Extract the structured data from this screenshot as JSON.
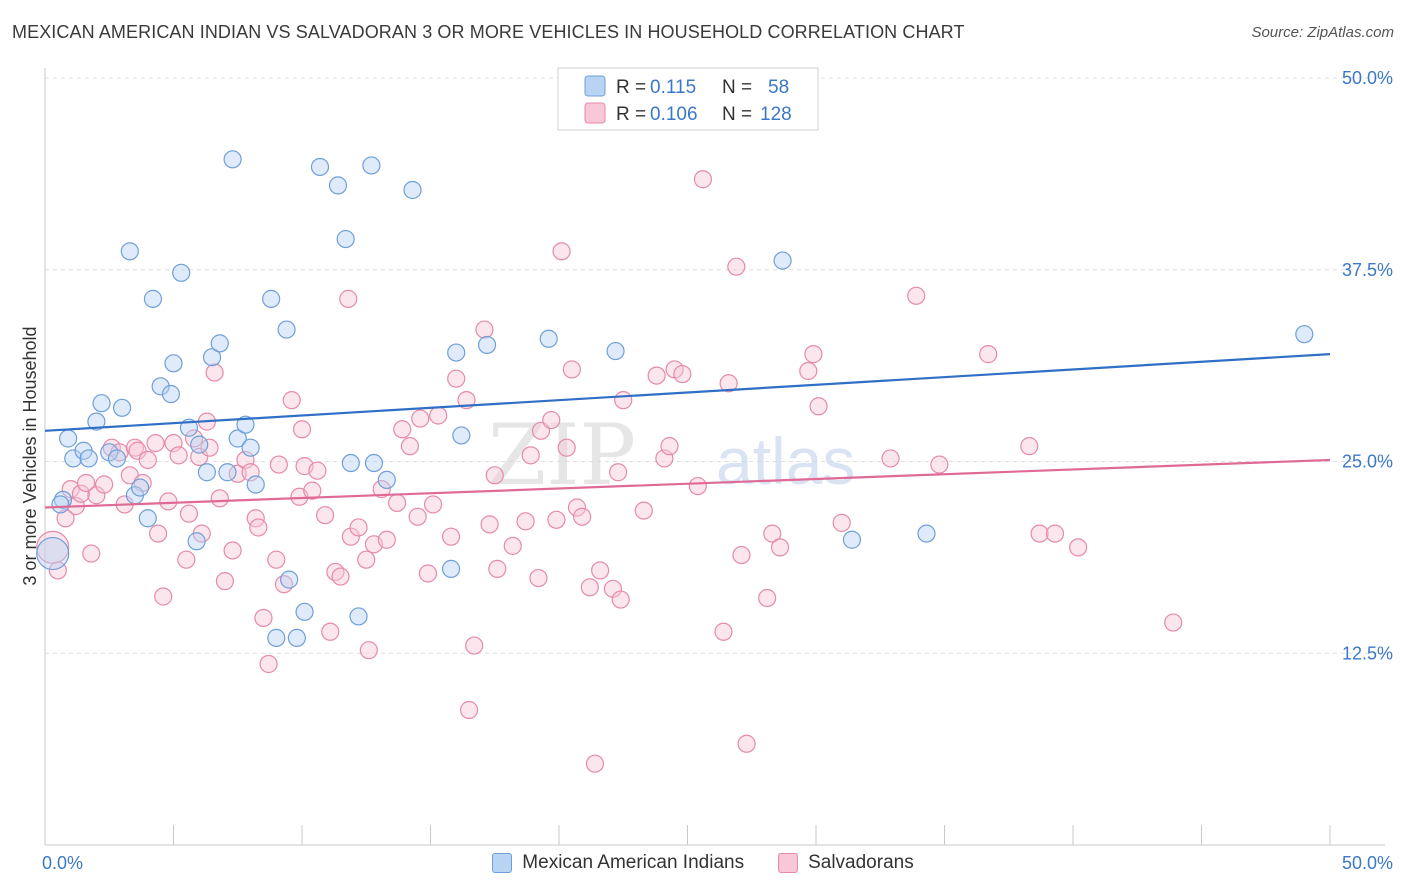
{
  "title": "MEXICAN AMERICAN INDIAN VS SALVADORAN 3 OR MORE VEHICLES IN HOUSEHOLD CORRELATION CHART",
  "source": "Source: ZipAtlas.com",
  "watermark": "ZIPatlas",
  "colors": {
    "blue_fill": "#b9d3f3",
    "blue_stroke": "#6f9fd8",
    "blue_line": "#2f6fc6",
    "pink_fill": "#f9c8d8",
    "pink_stroke": "#e58aaa",
    "pink_line": "#e06a96",
    "tick_label": "#3c78c8"
  },
  "legend_top": {
    "rows": [
      {
        "r_label": "R =",
        "r_value": "0.115",
        "n_label": "N =",
        "n_value": "58"
      },
      {
        "r_label": "R =",
        "r_value": "0.106",
        "n_label": "N =",
        "n_value": "128"
      }
    ]
  },
  "legend_bottom": {
    "items": [
      {
        "label": "Mexican American Indians"
      },
      {
        "label": "Salvadorans"
      }
    ]
  },
  "chart_data": {
    "type": "scatter",
    "title": "MEXICAN AMERICAN INDIAN VS SALVADORAN 3 OR MORE VEHICLES IN HOUSEHOLD CORRELATION CHART",
    "xlabel": "",
    "ylabel": "3 or more Vehicles in Household",
    "xlim": [
      0,
      50
    ],
    "ylim": [
      0,
      50
    ],
    "x_tick_labels": [
      "0.0%",
      "50.0%"
    ],
    "y_ticks": [
      12.5,
      25.0,
      37.5,
      50.0
    ],
    "y_tick_labels": [
      "12.5%",
      "25.0%",
      "37.5%",
      "50.0%"
    ],
    "grid": true,
    "legend_position": "top-center",
    "series": [
      {
        "name": "Mexican American Indians",
        "color": "blue",
        "r": 0.115,
        "n": 58,
        "trend": {
          "x": [
            0,
            50
          ],
          "y": [
            27.0,
            32.0
          ]
        },
        "points": [
          [
            0.3,
            19.0,
            2
          ],
          [
            0.7,
            22.5,
            1
          ],
          [
            0.6,
            22.2,
            1
          ],
          [
            0.9,
            26.5,
            1
          ],
          [
            1.1,
            25.2,
            1
          ],
          [
            1.5,
            25.7,
            1
          ],
          [
            1.7,
            25.2,
            1
          ],
          [
            2.0,
            27.6,
            1
          ],
          [
            2.2,
            28.8,
            1
          ],
          [
            2.5,
            25.6,
            1
          ],
          [
            2.8,
            25.2,
            1
          ],
          [
            3.0,
            28.5,
            1
          ],
          [
            3.3,
            38.7,
            1
          ],
          [
            3.5,
            22.8,
            1
          ],
          [
            3.7,
            23.3,
            1
          ],
          [
            4.0,
            21.3,
            1
          ],
          [
            4.2,
            35.6,
            1
          ],
          [
            4.5,
            29.9,
            1
          ],
          [
            4.9,
            29.4,
            1
          ],
          [
            5.0,
            31.4,
            1
          ],
          [
            5.3,
            37.3,
            1
          ],
          [
            5.6,
            27.2,
            1
          ],
          [
            5.9,
            19.8,
            1
          ],
          [
            6.0,
            26.1,
            1
          ],
          [
            6.3,
            24.3,
            1
          ],
          [
            6.5,
            31.8,
            1
          ],
          [
            6.8,
            32.7,
            1
          ],
          [
            7.1,
            24.3,
            1
          ],
          [
            7.3,
            44.7,
            1
          ],
          [
            7.5,
            26.5,
            1
          ],
          [
            7.8,
            27.4,
            1
          ],
          [
            8.0,
            25.9,
            1
          ],
          [
            8.2,
            23.5,
            1
          ],
          [
            8.8,
            35.6,
            1
          ],
          [
            9.0,
            13.5,
            1
          ],
          [
            9.4,
            33.6,
            1
          ],
          [
            9.5,
            17.3,
            1
          ],
          [
            9.8,
            13.5,
            1
          ],
          [
            10.1,
            15.2,
            1
          ],
          [
            10.7,
            44.2,
            1
          ],
          [
            11.4,
            43.0,
            1
          ],
          [
            11.7,
            39.5,
            1
          ],
          [
            11.9,
            24.9,
            1
          ],
          [
            12.2,
            14.9,
            1
          ],
          [
            12.7,
            44.3,
            1
          ],
          [
            12.8,
            24.9,
            1
          ],
          [
            13.3,
            23.8,
            1
          ],
          [
            14.3,
            42.7,
            1
          ],
          [
            15.8,
            18.0,
            1
          ],
          [
            16.0,
            32.1,
            1
          ],
          [
            16.2,
            26.7,
            1
          ],
          [
            17.2,
            32.6,
            1
          ],
          [
            19.6,
            33.0,
            1
          ],
          [
            22.2,
            32.2,
            1
          ],
          [
            28.7,
            38.1,
            1
          ],
          [
            31.4,
            19.9,
            1
          ],
          [
            34.3,
            20.3,
            1
          ],
          [
            49.0,
            33.3,
            1
          ]
        ]
      },
      {
        "name": "Salvadorans",
        "color": "pink",
        "r": 0.106,
        "n": 128,
        "trend": {
          "x": [
            0,
            50
          ],
          "y": [
            22.0,
            25.1
          ]
        },
        "points": [
          [
            0.3,
            19.4,
            2
          ],
          [
            0.5,
            17.9,
            1
          ],
          [
            0.8,
            21.3,
            1
          ],
          [
            1.0,
            23.2,
            1
          ],
          [
            1.2,
            22.1,
            1
          ],
          [
            1.4,
            22.9,
            1
          ],
          [
            1.6,
            23.6,
            1
          ],
          [
            1.8,
            19.0,
            1
          ],
          [
            2.0,
            22.8,
            1
          ],
          [
            2.3,
            23.5,
            1
          ],
          [
            2.6,
            25.9,
            1
          ],
          [
            2.9,
            25.6,
            1
          ],
          [
            3.1,
            22.2,
            1
          ],
          [
            3.3,
            24.1,
            1
          ],
          [
            3.5,
            25.9,
            1
          ],
          [
            3.6,
            25.7,
            1
          ],
          [
            3.8,
            23.6,
            1
          ],
          [
            4.0,
            25.1,
            1
          ],
          [
            4.3,
            26.2,
            1
          ],
          [
            4.4,
            20.3,
            1
          ],
          [
            4.6,
            16.2,
            1
          ],
          [
            4.8,
            22.4,
            1
          ],
          [
            5.0,
            26.2,
            1
          ],
          [
            5.2,
            25.4,
            1
          ],
          [
            5.5,
            18.6,
            1
          ],
          [
            5.6,
            21.6,
            1
          ],
          [
            5.8,
            26.5,
            1
          ],
          [
            6.0,
            25.3,
            1
          ],
          [
            6.1,
            20.3,
            1
          ],
          [
            6.3,
            27.6,
            1
          ],
          [
            6.4,
            25.9,
            1
          ],
          [
            6.6,
            30.8,
            1
          ],
          [
            6.8,
            22.6,
            1
          ],
          [
            7.0,
            17.2,
            1
          ],
          [
            7.3,
            19.2,
            1
          ],
          [
            7.5,
            24.2,
            1
          ],
          [
            7.8,
            25.1,
            1
          ],
          [
            8.0,
            24.3,
            1
          ],
          [
            8.2,
            21.3,
            1
          ],
          [
            8.3,
            20.7,
            1
          ],
          [
            8.5,
            14.8,
            1
          ],
          [
            8.7,
            11.8,
            1
          ],
          [
            9.0,
            18.6,
            1
          ],
          [
            9.1,
            24.8,
            1
          ],
          [
            9.3,
            17.0,
            1
          ],
          [
            9.6,
            29.0,
            1
          ],
          [
            9.9,
            22.7,
            1
          ],
          [
            10.0,
            27.1,
            1
          ],
          [
            10.1,
            24.7,
            1
          ],
          [
            10.4,
            23.1,
            1
          ],
          [
            10.6,
            24.4,
            1
          ],
          [
            10.9,
            21.5,
            1
          ],
          [
            11.1,
            13.9,
            1
          ],
          [
            11.3,
            17.8,
            1
          ],
          [
            11.5,
            17.5,
            1
          ],
          [
            11.8,
            35.6,
            1
          ],
          [
            11.9,
            20.1,
            1
          ],
          [
            12.2,
            20.7,
            1
          ],
          [
            12.5,
            18.6,
            1
          ],
          [
            12.6,
            12.7,
            1
          ],
          [
            12.8,
            19.6,
            1
          ],
          [
            13.1,
            23.2,
            1
          ],
          [
            13.3,
            19.9,
            1
          ],
          [
            13.7,
            22.3,
            1
          ],
          [
            13.9,
            27.1,
            1
          ],
          [
            14.2,
            26.0,
            1
          ],
          [
            14.5,
            21.4,
            1
          ],
          [
            14.6,
            27.8,
            1
          ],
          [
            14.9,
            17.7,
            1
          ],
          [
            15.1,
            22.2,
            1
          ],
          [
            15.3,
            28.0,
            1
          ],
          [
            15.8,
            20.1,
            1
          ],
          [
            16.0,
            30.4,
            1
          ],
          [
            16.4,
            29.0,
            1
          ],
          [
            16.5,
            8.8,
            1
          ],
          [
            16.7,
            13.0,
            1
          ],
          [
            17.1,
            33.6,
            1
          ],
          [
            17.3,
            20.9,
            1
          ],
          [
            17.5,
            24.1,
            1
          ],
          [
            17.6,
            18.0,
            1
          ],
          [
            18.2,
            19.5,
            1
          ],
          [
            18.7,
            21.1,
            1
          ],
          [
            18.9,
            25.4,
            1
          ],
          [
            19.2,
            17.4,
            1
          ],
          [
            19.3,
            27.0,
            1
          ],
          [
            19.7,
            27.7,
            1
          ],
          [
            19.9,
            21.2,
            1
          ],
          [
            20.1,
            38.7,
            1
          ],
          [
            20.3,
            25.9,
            1
          ],
          [
            20.5,
            31.0,
            1
          ],
          [
            20.7,
            22.0,
            1
          ],
          [
            20.9,
            21.4,
            1
          ],
          [
            21.2,
            16.8,
            1
          ],
          [
            21.4,
            5.3,
            1
          ],
          [
            21.6,
            17.9,
            1
          ],
          [
            22.1,
            16.7,
            1
          ],
          [
            22.3,
            24.3,
            1
          ],
          [
            22.4,
            16.0,
            1
          ],
          [
            22.5,
            29.0,
            1
          ],
          [
            23.3,
            21.8,
            1
          ],
          [
            23.8,
            30.6,
            1
          ],
          [
            24.1,
            25.2,
            1
          ],
          [
            24.3,
            26.0,
            1
          ],
          [
            24.5,
            31.0,
            1
          ],
          [
            24.8,
            30.7,
            1
          ],
          [
            25.4,
            23.4,
            1
          ],
          [
            25.6,
            43.4,
            1
          ],
          [
            26.4,
            13.9,
            1
          ],
          [
            26.6,
            30.1,
            1
          ],
          [
            26.9,
            37.7,
            1
          ],
          [
            27.1,
            18.9,
            1
          ],
          [
            27.3,
            6.6,
            1
          ],
          [
            28.1,
            16.1,
            1
          ],
          [
            28.3,
            20.3,
            1
          ],
          [
            28.6,
            19.4,
            1
          ],
          [
            29.7,
            30.9,
            1
          ],
          [
            29.9,
            32.0,
            1
          ],
          [
            30.1,
            28.6,
            1
          ],
          [
            31.0,
            21.0,
            1
          ],
          [
            32.9,
            25.2,
            1
          ],
          [
            33.9,
            35.8,
            1
          ],
          [
            34.8,
            24.8,
            1
          ],
          [
            36.7,
            32.0,
            1
          ],
          [
            38.3,
            26.0,
            1
          ],
          [
            38.7,
            20.3,
            1
          ],
          [
            39.3,
            20.3,
            1
          ],
          [
            40.2,
            19.4,
            1
          ],
          [
            43.9,
            14.5,
            1
          ]
        ]
      }
    ]
  }
}
